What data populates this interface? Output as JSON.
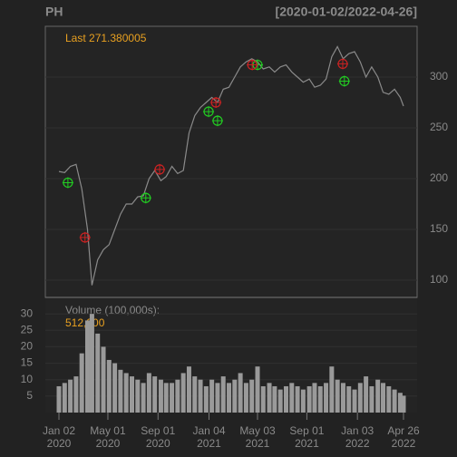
{
  "chart_data": [
    {
      "type": "line",
      "title": "PH",
      "subtitle": "[2020-01-02/2022-04-26]",
      "annotation": "Last 271.380005",
      "color": "#8a8a8a",
      "x": [
        "2020-01-02",
        "2020-01-16",
        "2020-01-30",
        "2020-02-13",
        "2020-02-27",
        "2020-03-12",
        "2020-03-23",
        "2020-04-06",
        "2020-04-20",
        "2020-05-04",
        "2020-05-18",
        "2020-06-01",
        "2020-06-15",
        "2020-06-29",
        "2020-07-13",
        "2020-07-27",
        "2020-08-10",
        "2020-08-24",
        "2020-09-08",
        "2020-09-21",
        "2020-10-05",
        "2020-10-19",
        "2020-11-02",
        "2020-11-16",
        "2020-11-30",
        "2020-12-14",
        "2020-12-28",
        "2021-01-11",
        "2021-01-25",
        "2021-02-08",
        "2021-02-22",
        "2021-03-08",
        "2021-03-22",
        "2021-04-05",
        "2021-04-19",
        "2021-05-03",
        "2021-05-17",
        "2021-06-01",
        "2021-06-14",
        "2021-06-28",
        "2021-07-12",
        "2021-07-26",
        "2021-08-09",
        "2021-08-23",
        "2021-09-07",
        "2021-09-20",
        "2021-10-04",
        "2021-10-18",
        "2021-11-01",
        "2021-11-15",
        "2021-11-29",
        "2021-12-13",
        "2021-12-27",
        "2022-01-10",
        "2022-01-24",
        "2022-02-07",
        "2022-02-22",
        "2022-03-07",
        "2022-03-21",
        "2022-04-04",
        "2022-04-18",
        "2022-04-26"
      ],
      "values": [
        207,
        206,
        212,
        214,
        190,
        150,
        95,
        120,
        130,
        135,
        150,
        165,
        175,
        175,
        182,
        183,
        200,
        208,
        198,
        202,
        212,
        205,
        208,
        245,
        262,
        270,
        275,
        280,
        275,
        288,
        290,
        300,
        310,
        315,
        318,
        315,
        308,
        310,
        305,
        310,
        312,
        305,
        300,
        295,
        298,
        290,
        292,
        298,
        320,
        330,
        318,
        323,
        325,
        315,
        300,
        310,
        300,
        285,
        283,
        288,
        280,
        271.380005
      ],
      "signals": [
        {
          "color": "#22cc22",
          "x": [
            "2020-01-24",
            "2020-08-02",
            "2021-01-03",
            "2021-01-25",
            "2021-05-03",
            "2021-12-02"
          ],
          "values": [
            196,
            181,
            266,
            257,
            312,
            296
          ]
        },
        {
          "color": "#cc2222",
          "x": [
            "2020-03-06",
            "2020-09-05",
            "2021-01-21",
            "2021-04-20",
            "2021-11-28"
          ],
          "values": [
            142,
            209,
            275,
            312,
            313
          ]
        }
      ],
      "xlim": [
        "2020-01-02",
        "2022-04-26"
      ],
      "ylim": [
        83,
        350
      ],
      "yticks": [
        100,
        150,
        200,
        250,
        300
      ],
      "grid": true
    },
    {
      "type": "bar",
      "annotation": "Volume (100,000s):",
      "last_label": "512,900",
      "color": "#9a9a9a",
      "x": [
        "2020-01-02",
        "2020-01-16",
        "2020-01-30",
        "2020-02-13",
        "2020-02-27",
        "2020-03-12",
        "2020-03-23",
        "2020-04-06",
        "2020-04-20",
        "2020-05-04",
        "2020-05-18",
        "2020-06-01",
        "2020-06-15",
        "2020-06-29",
        "2020-07-13",
        "2020-07-27",
        "2020-08-10",
        "2020-08-24",
        "2020-09-08",
        "2020-09-21",
        "2020-10-05",
        "2020-10-19",
        "2020-11-02",
        "2020-11-16",
        "2020-11-30",
        "2020-12-14",
        "2020-12-28",
        "2021-01-11",
        "2021-01-25",
        "2021-02-08",
        "2021-02-22",
        "2021-03-08",
        "2021-03-22",
        "2021-04-05",
        "2021-04-19",
        "2021-05-03",
        "2021-05-17",
        "2021-06-01",
        "2021-06-14",
        "2021-06-28",
        "2021-07-12",
        "2021-07-26",
        "2021-08-09",
        "2021-08-23",
        "2021-09-07",
        "2021-09-20",
        "2021-10-04",
        "2021-10-18",
        "2021-11-01",
        "2021-11-15",
        "2021-11-29",
        "2021-12-13",
        "2021-12-27",
        "2022-01-10",
        "2022-01-24",
        "2022-02-07",
        "2022-02-22",
        "2022-03-07",
        "2022-03-21",
        "2022-04-04",
        "2022-04-18",
        "2022-04-26"
      ],
      "values": [
        8,
        9,
        10,
        11,
        18,
        28,
        30,
        24,
        20,
        16,
        15,
        13,
        12,
        11,
        10,
        9,
        12,
        11,
        10,
        9,
        9,
        10,
        12,
        14,
        11,
        10,
        8,
        10,
        9,
        11,
        9,
        10,
        12,
        9,
        10,
        14,
        8,
        9,
        8,
        7,
        8,
        9,
        8,
        7,
        8,
        9,
        8,
        9,
        14,
        10,
        9,
        8,
        7,
        9,
        11,
        8,
        10,
        9,
        8,
        7,
        6,
        5.129
      ],
      "xlim": [
        "2020-01-02",
        "2022-04-26"
      ],
      "ylim": [
        0,
        35
      ],
      "yticks": [
        5,
        10,
        15,
        20,
        25,
        30
      ],
      "xticks": [
        {
          "value": "2020-01-02",
          "label": [
            "Jan 02",
            "2020"
          ]
        },
        {
          "value": "2020-05-01",
          "label": [
            "May 01",
            "2020"
          ]
        },
        {
          "value": "2020-09-01",
          "label": [
            "Sep 01",
            "2020"
          ]
        },
        {
          "value": "2021-01-04",
          "label": [
            "Jan 04",
            "2021"
          ]
        },
        {
          "value": "2021-05-03",
          "label": [
            "May 03",
            "2021"
          ]
        },
        {
          "value": "2021-09-01",
          "label": [
            "Sep 01",
            "2021"
          ]
        },
        {
          "value": "2022-01-03",
          "label": [
            "Jan 03",
            "2022"
          ]
        },
        {
          "value": "2022-04-26",
          "label": [
            "Apr 26",
            "2022"
          ]
        }
      ]
    }
  ]
}
